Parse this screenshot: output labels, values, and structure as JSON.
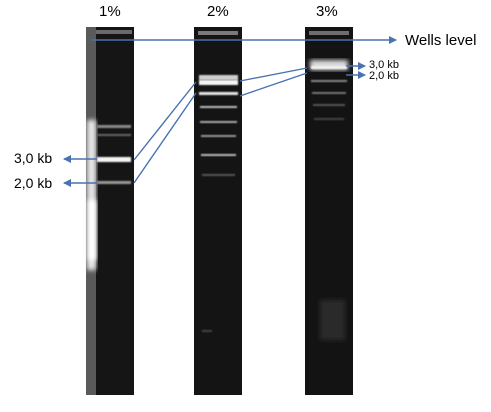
{
  "lanes": [
    {
      "label": "1%"
    },
    {
      "label": "2%"
    },
    {
      "label": "3%"
    }
  ],
  "markers": {
    "large_3kb": "3,0 kb",
    "large_2kb": "2,0 kb",
    "small_3kb": "3,0 kb",
    "small_2kb": "2,0 kb"
  },
  "wells_label": "Wells level",
  "colors": {
    "arrow": "#4a72b0",
    "gel": "#141414",
    "band": "#f2f2f2",
    "background": "#ffffff"
  }
}
